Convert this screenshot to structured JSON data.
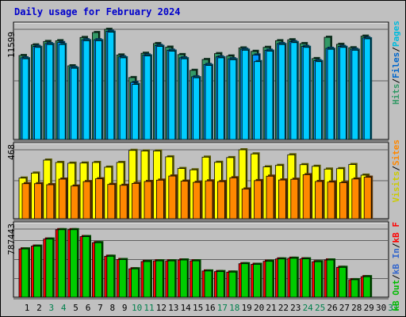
{
  "window": {
    "title": "Daily usage for February 2024"
  },
  "colors": {
    "pages": "#00ccff",
    "files": "#0099ff",
    "hits": "#339966",
    "visits": "#ffff00",
    "sites": "#ff8800",
    "kb_f": "#ff0000",
    "kb_in": "#0066ff",
    "kb_out": "#00cc00",
    "day_black": "#000000",
    "day_green": "#00804c",
    "panel_bg": "#c0c0c0",
    "title": "#0000cc"
  },
  "legends": {
    "panel1": [
      {
        "text": "Hits",
        "color": "#339966"
      },
      {
        "text": "/",
        "color": "#000000"
      },
      {
        "text": "Files",
        "color": "#0066cc"
      },
      {
        "text": "/",
        "color": "#000000"
      },
      {
        "text": "Pages",
        "color": "#00bbdd"
      }
    ],
    "panel2": [
      {
        "text": "Visits",
        "color": "#cccc00"
      },
      {
        "text": "/",
        "color": "#000000"
      },
      {
        "text": "Sites",
        "color": "#ff8800"
      }
    ],
    "panel3": [
      {
        "text": "kB Out",
        "color": "#00bb00"
      },
      {
        "text": "/",
        "color": "#000000"
      },
      {
        "text": "kB In",
        "color": "#3366cc"
      },
      {
        "text": "/",
        "color": "#000000"
      },
      {
        "text": "kB F",
        "color": "#ff0000"
      }
    ]
  },
  "chart_data": [
    {
      "type": "bar",
      "title": "Daily usage for February 2024",
      "ymax_label": "11599",
      "ylim": [
        0,
        11599
      ],
      "categories": [
        "1",
        "2",
        "3",
        "4",
        "5",
        "6",
        "7",
        "8",
        "9",
        "10",
        "11",
        "12",
        "13",
        "14",
        "15",
        "16",
        "17",
        "18",
        "19",
        "20",
        "21",
        "22",
        "23",
        "24",
        "25",
        "26",
        "27",
        "28",
        "29",
        "30",
        "31"
      ],
      "series": [
        {
          "name": "Hits",
          "values": [
            8840,
            9960,
            10320,
            10400,
            7760,
            10740,
            11260,
            11600,
            8900,
            6520,
            9080,
            10100,
            9720,
            8940,
            7280,
            8420,
            9040,
            8790,
            9640,
            9280,
            9700,
            10400,
            10500,
            10100,
            8520,
            10760,
            10020,
            9660,
            10880,
            0,
            0
          ]
        },
        {
          "name": "Files",
          "values": [
            8600,
            9800,
            10100,
            10200,
            7600,
            10500,
            10500,
            11400,
            8700,
            6000,
            8900,
            9900,
            9400,
            8600,
            6600,
            7900,
            8700,
            8500,
            9500,
            8900,
            9400,
            10100,
            10300,
            9800,
            8300,
            9600,
            9800,
            9500,
            10700,
            0,
            0
          ]
        },
        {
          "name": "Pages",
          "values": [
            8500,
            9700,
            10000,
            10000,
            7500,
            10400,
            10400,
            11300,
            8600,
            5800,
            8800,
            9800,
            9300,
            8500,
            6500,
            7800,
            8600,
            8400,
            9400,
            8200,
            9300,
            10000,
            10200,
            9700,
            8200,
            9500,
            9700,
            9400,
            10600,
            0,
            0
          ]
        }
      ]
    },
    {
      "type": "bar",
      "ymax_label": "468",
      "ylim": [
        0,
        468
      ],
      "categories": [
        "1",
        "2",
        "3",
        "4",
        "5",
        "6",
        "7",
        "8",
        "9",
        "10",
        "11",
        "12",
        "13",
        "14",
        "15",
        "16",
        "17",
        "18",
        "19",
        "20",
        "21",
        "22",
        "23",
        "24",
        "25",
        "26",
        "27",
        "28",
        "29",
        "30",
        "31"
      ],
      "series": [
        {
          "name": "Visits",
          "values": [
            276,
            310,
            398,
            382,
            377,
            378,
            382,
            350,
            382,
            464,
            460,
            460,
            420,
            341,
            332,
            418,
            383,
            415,
            468,
            440,
            352,
            362,
            434,
            367,
            356,
            337,
            340,
            368,
            296,
            0,
            0
          ]
        },
        {
          "name": "Sites",
          "values": [
            238,
            238,
            231,
            269,
            222,
            252,
            271,
            233,
            227,
            240,
            253,
            262,
            290,
            255,
            247,
            257,
            252,
            278,
            202,
            259,
            289,
            263,
            268,
            299,
            253,
            249,
            245,
            270,
            282,
            0,
            0
          ]
        }
      ]
    },
    {
      "type": "bar",
      "ymax_label": "787443",
      "ylim": [
        0,
        787443
      ],
      "categories": [
        "1",
        "2",
        "3",
        "4",
        "5",
        "6",
        "7",
        "8",
        "9",
        "10",
        "11",
        "12",
        "13",
        "14",
        "15",
        "16",
        "17",
        "18",
        "19",
        "20",
        "21",
        "22",
        "23",
        "24",
        "25",
        "26",
        "27",
        "28",
        "29",
        "30",
        "31"
      ],
      "series": [
        {
          "name": "kB F",
          "values": [
            558000,
            590000,
            672000,
            780000,
            780000,
            700000,
            630000,
            473000,
            435000,
            328000,
            412000,
            420000,
            420000,
            430000,
            420000,
            303000,
            296000,
            290000,
            387000,
            380000,
            415000,
            442000,
            450000,
            443000,
            410000,
            430000,
            345000,
            202000,
            237000,
            0,
            0
          ]
        },
        {
          "name": "kB Out",
          "values": [
            558000,
            590000,
            672000,
            780000,
            780000,
            700000,
            630000,
            473000,
            435000,
            328000,
            412000,
            420000,
            420000,
            430000,
            420000,
            303000,
            296000,
            290000,
            387000,
            380000,
            415000,
            442000,
            450000,
            443000,
            410000,
            430000,
            345000,
            202000,
            237000,
            0,
            0
          ]
        }
      ]
    }
  ],
  "x_labels": {
    "green_days": [
      "3",
      "4",
      "10",
      "11",
      "17",
      "18",
      "24",
      "25",
      "31"
    ]
  }
}
